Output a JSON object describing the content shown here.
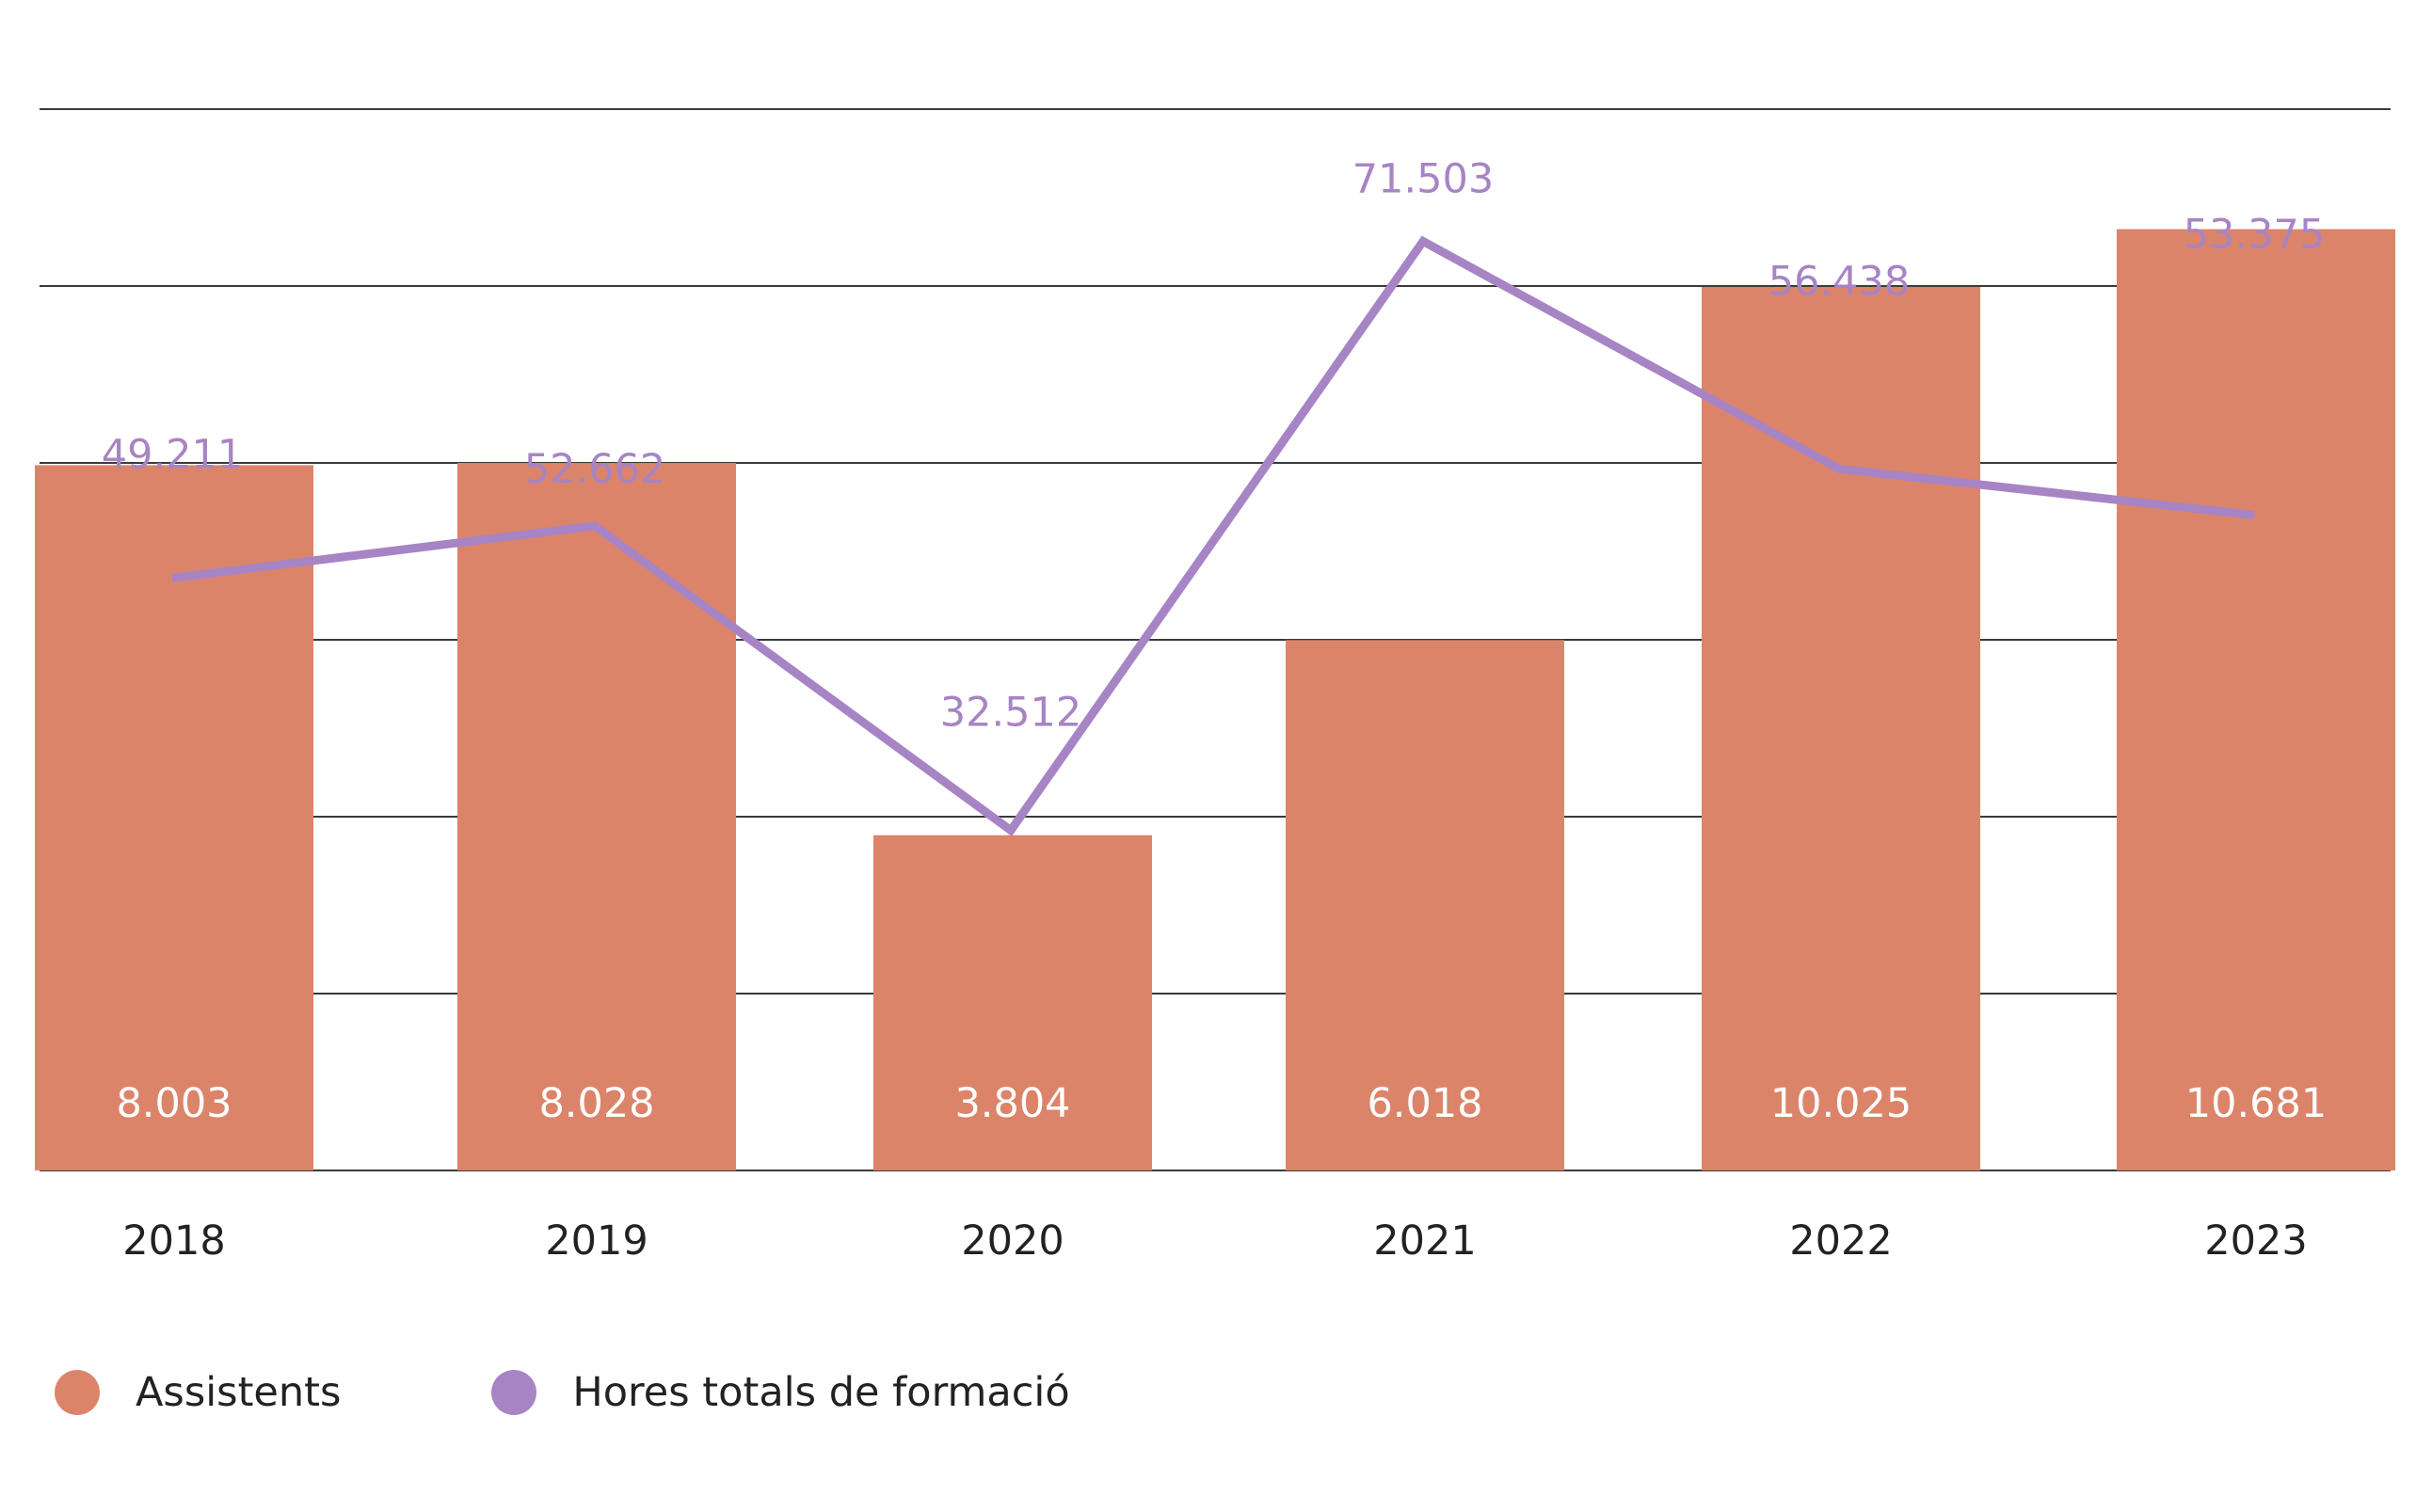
{
  "colors": {
    "bar": "#dc846a",
    "line": "#a784c4",
    "bar_label": "#ffffff",
    "line_label": "#a784c4",
    "axis_text": "#222222",
    "grid": "#3a3a3a"
  },
  "legend": {
    "items": [
      {
        "label": "Assistents",
        "color": "#dc846a"
      },
      {
        "label": "Hores totals de formació",
        "color": "#a784c4"
      }
    ]
  },
  "chart_data": {
    "type": "bar",
    "title": "",
    "xlabel": "",
    "ylabel": "",
    "categories": [
      "2018",
      "2019",
      "2020",
      "2021",
      "2022",
      "2023"
    ],
    "series": [
      {
        "name": "Assistents",
        "type": "bar",
        "axis": "left",
        "values": [
          8003,
          8028,
          3804,
          6018,
          10025,
          10681
        ],
        "labels": [
          "8.003",
          "8.028",
          "3.804",
          "6.018",
          "10.025",
          "10.681"
        ]
      },
      {
        "name": "Hores totals de formació",
        "type": "line",
        "axis": "right",
        "values": [
          49211,
          52662,
          32512,
          71503,
          56438,
          53375
        ],
        "labels": [
          "49.211",
          "52.662",
          "32.512",
          "71.503",
          "56.438",
          "53.375"
        ]
      }
    ],
    "left_axis_range": [
      0,
      12000
    ],
    "right_axis_range": [
      10000,
      80000
    ],
    "grid": true,
    "legend_position": "bottom-left"
  }
}
